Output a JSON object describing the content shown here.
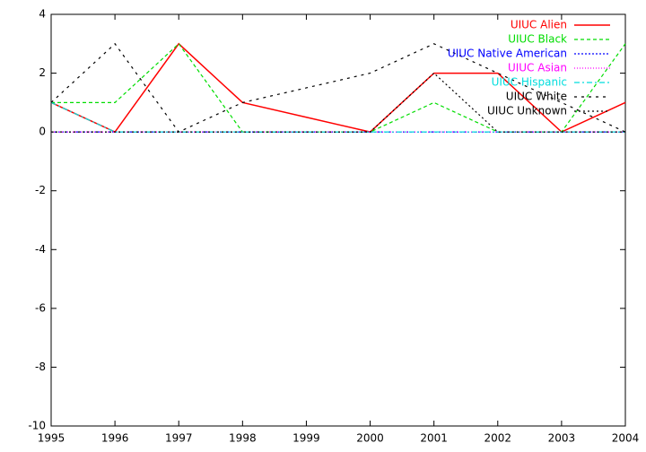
{
  "chart_data": {
    "type": "line",
    "x": [
      1995,
      1996,
      1997,
      1998,
      1999,
      2000,
      2001,
      2002,
      2003,
      2004
    ],
    "xlim": [
      1995,
      2004
    ],
    "xticks": [
      1995,
      1996,
      1997,
      1998,
      1999,
      2000,
      2001,
      2002,
      2003,
      2004
    ],
    "ylim": [
      -10,
      4
    ],
    "yticks": [
      -10,
      -8,
      -6,
      -4,
      -2,
      0,
      2,
      4
    ],
    "legend": "top-right",
    "series": [
      {
        "name": "UIUC Alien",
        "color": "#ff0000",
        "dash": "none",
        "values": [
          1,
          0,
          3,
          1,
          0.5,
          0,
          2,
          2,
          0,
          1
        ]
      },
      {
        "name": "UIUC Black",
        "color": "#00dd00",
        "dash": "4,3",
        "values": [
          1,
          1,
          3,
          0,
          0,
          0,
          1,
          0,
          0,
          3
        ]
      },
      {
        "name": "UIUC Native American",
        "color": "#0000ff",
        "dash": "2,2",
        "values": [
          0,
          0,
          0,
          0,
          0,
          0,
          0,
          0,
          0,
          0
        ]
      },
      {
        "name": "UIUC Asian",
        "color": "#ff00ff",
        "dash": "1,2",
        "values": [
          0,
          0,
          0,
          0,
          0,
          0,
          0,
          0,
          0,
          0
        ]
      },
      {
        "name": "UIUC Hispanic",
        "color": "#00dddd",
        "dash": "6,3,2,3",
        "values": [
          1,
          0,
          0,
          0,
          0,
          0,
          0,
          0,
          0,
          0
        ]
      },
      {
        "name": "UIUC White",
        "color": "#000000",
        "dash": "3,5",
        "values": [
          1,
          3,
          0,
          1,
          1.5,
          2,
          3,
          2,
          1,
          0
        ]
      },
      {
        "name": "UIUC Unknown",
        "color": "#000000",
        "dash": "2,3",
        "values": [
          0,
          0,
          0,
          0,
          0,
          0,
          2,
          0,
          0,
          0
        ]
      }
    ]
  }
}
